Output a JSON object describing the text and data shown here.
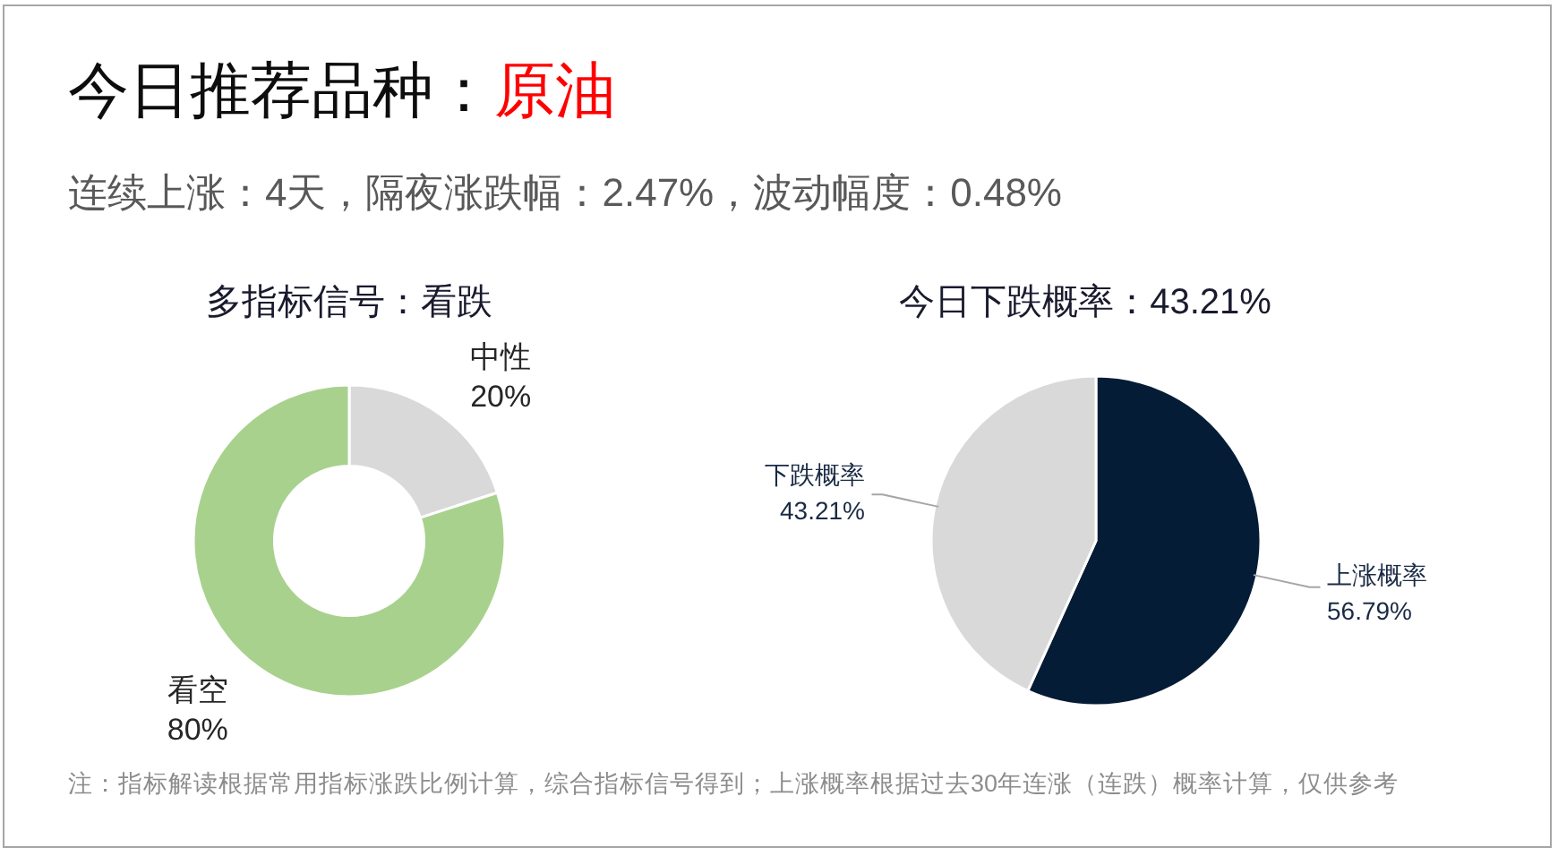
{
  "chart_data": [
    {
      "type": "other",
      "title": "今日推荐品种：",
      "subtitle": "连续上涨：4天，隔夜涨跌幅：2.47%，波动幅度：0.48%",
      "annotations": [
        "原油",
        "注：指标解读根据常用指标涨跌比例计算，综合指标信号得到；上涨概率根据过去30年连涨（连跌）概率计算，仅供参考"
      ]
    },
    {
      "type": "donut",
      "title": "多指标信号：看跌",
      "categories": [
        "中性",
        "看空"
      ],
      "values": [
        20,
        80
      ],
      "colors": [
        "#d9d9d9",
        "#a9d18e"
      ],
      "value_labels": [
        "20%",
        "80%"
      ]
    },
    {
      "type": "pie",
      "title": "今日下跌概率：43.21%",
      "categories": [
        "上涨概率",
        "下跌概率"
      ],
      "values": [
        56.79,
        43.21
      ],
      "colors": [
        "#051c36",
        "#d9d9d9"
      ],
      "value_labels": [
        "56.79%",
        "43.21%"
      ]
    }
  ]
}
